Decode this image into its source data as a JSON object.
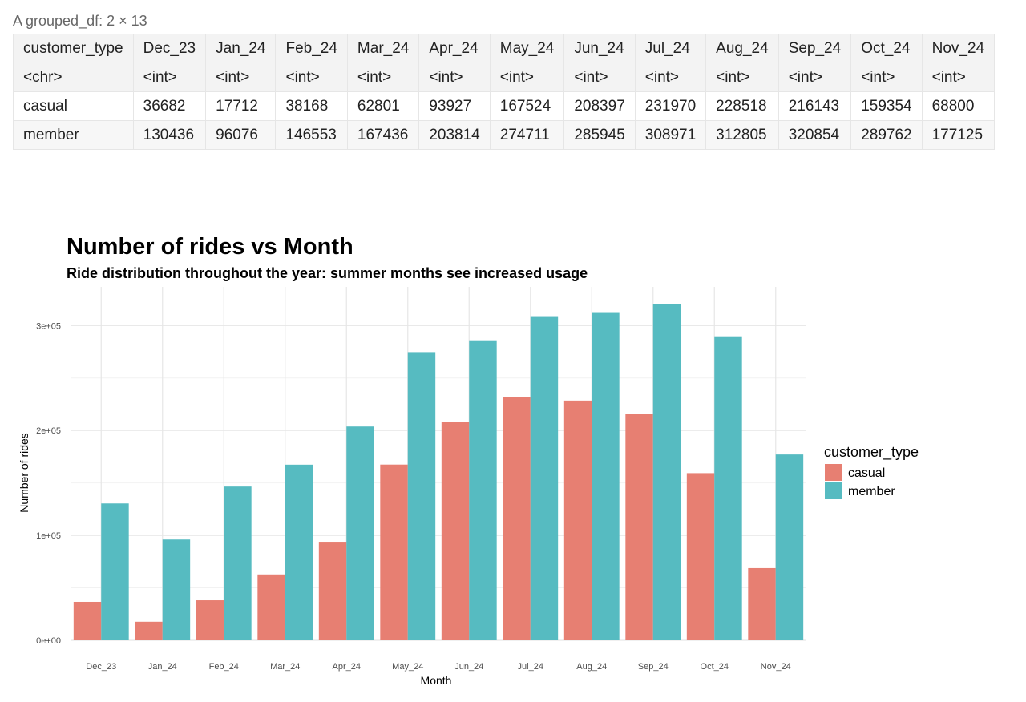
{
  "table": {
    "caption": "A grouped_df: 2 × 13",
    "columns": [
      "customer_type",
      "Dec_23",
      "Jan_24",
      "Feb_24",
      "Mar_24",
      "Apr_24",
      "May_24",
      "Jun_24",
      "Jul_24",
      "Aug_24",
      "Sep_24",
      "Oct_24",
      "Nov_24"
    ],
    "types": [
      "<chr>",
      "<int>",
      "<int>",
      "<int>",
      "<int>",
      "<int>",
      "<int>",
      "<int>",
      "<int>",
      "<int>",
      "<int>",
      "<int>",
      "<int>"
    ],
    "rows": [
      [
        "casual",
        "36682",
        "17712",
        "38168",
        "62801",
        "93927",
        "167524",
        "208397",
        "231970",
        "228518",
        "216143",
        "159354",
        "68800"
      ],
      [
        "member",
        "130436",
        "96076",
        "146553",
        "167436",
        "203814",
        "274711",
        "285945",
        "308971",
        "312805",
        "320854",
        "289762",
        "177125"
      ]
    ]
  },
  "chart_data": {
    "type": "bar",
    "title": "Number of rides vs Month",
    "subtitle": "Ride distribution throughout the year: summer months see increased usage",
    "xlabel": "Month",
    "ylabel": "Number of rides",
    "categories": [
      "Dec_23",
      "Jan_24",
      "Feb_24",
      "Mar_24",
      "Apr_24",
      "May_24",
      "Jun_24",
      "Jul_24",
      "Aug_24",
      "Sep_24",
      "Oct_24",
      "Nov_24"
    ],
    "series": [
      {
        "name": "casual",
        "color": "#E77F72",
        "values": [
          36682,
          17712,
          38168,
          62801,
          93927,
          167524,
          208397,
          231970,
          228518,
          216143,
          159354,
          68800
        ]
      },
      {
        "name": "member",
        "color": "#56BBC1",
        "values": [
          130436,
          96076,
          146553,
          167436,
          203814,
          274711,
          285945,
          308971,
          312805,
          320854,
          289762,
          177125
        ]
      }
    ],
    "yticks": [
      0,
      100000,
      200000,
      300000
    ],
    "ytick_labels": [
      "0e+00",
      "1e+05",
      "2e+05",
      "3e+05"
    ],
    "ylim": [
      0,
      336900
    ],
    "grid": true,
    "barmode": "grouped",
    "legend_title": "customer_type",
    "legend_position": "right"
  }
}
